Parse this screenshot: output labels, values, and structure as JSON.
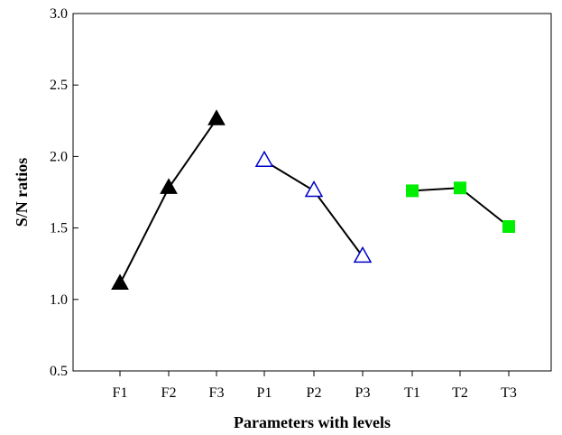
{
  "chart_data": {
    "type": "line",
    "title": "",
    "xlabel": "Parameters with levels",
    "ylabel": "S/N ratios",
    "ylim": [
      0.5,
      3.0
    ],
    "yticks": [
      "0.5",
      "1.0",
      "1.5",
      "2.0",
      "2.5",
      "3.0"
    ],
    "grid": false,
    "legend": "none",
    "categories": [
      "F1",
      "F2",
      "F3",
      "P1",
      "P2",
      "P3",
      "T1",
      "T2",
      "T3"
    ],
    "series": [
      {
        "x": [
          "F1",
          "F2",
          "F3"
        ],
        "values": [
          1.11,
          1.78,
          2.26
        ],
        "marker": "filled-triangle",
        "marker_color": "#000000",
        "line_color": "#000000"
      },
      {
        "x": [
          "P1",
          "P2",
          "P3"
        ],
        "values": [
          1.97,
          1.76,
          1.3
        ],
        "marker": "hollow-triangle",
        "marker_color": "#0000cc",
        "line_color": "#000000"
      },
      {
        "x": [
          "T1",
          "T2",
          "T3"
        ],
        "values": [
          1.76,
          1.78,
          1.51
        ],
        "marker": "filled-square",
        "marker_color": "#00ee00",
        "line_color": "#000000"
      }
    ]
  }
}
